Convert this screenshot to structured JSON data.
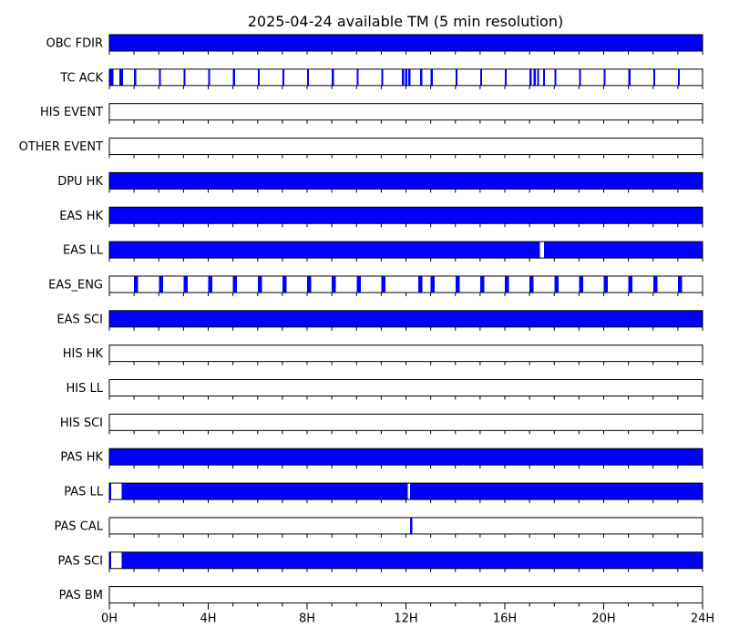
{
  "chart_data": {
    "type": "timeline",
    "title": "2025-04-24 available TM (5 min resolution)",
    "x_unit": "hours",
    "xlim": [
      0,
      24
    ],
    "x_ticks": [
      0,
      4,
      8,
      12,
      16,
      20,
      24
    ],
    "x_tick_labels": [
      "0H",
      "4H",
      "8H",
      "12H",
      "16H",
      "20H",
      "24H"
    ],
    "minor_tick_step_hours": 1,
    "fill_color": "#0000ff",
    "rows": [
      {
        "label": "OBC FDIR",
        "intervals": [
          [
            0,
            24
          ]
        ]
      },
      {
        "label": "TC ACK",
        "intervals": [
          [
            0.0,
            0.17
          ],
          [
            0.4,
            0.55
          ],
          [
            1.0,
            1.08
          ],
          [
            2.0,
            2.08
          ],
          [
            3.0,
            3.08
          ],
          [
            4.0,
            4.08
          ],
          [
            5.0,
            5.08
          ],
          [
            6.0,
            6.08
          ],
          [
            7.0,
            7.08
          ],
          [
            8.0,
            8.08
          ],
          [
            9.0,
            9.08
          ],
          [
            10.0,
            10.08
          ],
          [
            11.0,
            11.08
          ],
          [
            11.83,
            11.92
          ],
          [
            11.97,
            12.05
          ],
          [
            12.1,
            12.18
          ],
          [
            12.58,
            12.67
          ],
          [
            13.0,
            13.08
          ],
          [
            14.0,
            14.08
          ],
          [
            15.0,
            15.08
          ],
          [
            16.0,
            16.08
          ],
          [
            17.0,
            17.08
          ],
          [
            17.17,
            17.25
          ],
          [
            17.3,
            17.38
          ],
          [
            17.55,
            17.63
          ],
          [
            18.0,
            18.08
          ],
          [
            19.0,
            19.08
          ],
          [
            20.0,
            20.08
          ],
          [
            21.0,
            21.08
          ],
          [
            22.0,
            22.08
          ],
          [
            23.0,
            23.08
          ]
        ]
      },
      {
        "label": "HIS EVENT",
        "intervals": []
      },
      {
        "label": "OTHER EVENT",
        "intervals": []
      },
      {
        "label": "DPU HK",
        "intervals": [
          [
            0,
            24
          ]
        ]
      },
      {
        "label": "EAS HK",
        "intervals": [
          [
            0,
            24
          ]
        ]
      },
      {
        "label": "EAS LL",
        "intervals": [
          [
            0,
            17.42
          ],
          [
            17.58,
            24
          ]
        ]
      },
      {
        "label": "EAS_ENG",
        "intervals": [
          [
            1.0,
            1.17
          ],
          [
            2.0,
            2.17
          ],
          [
            3.0,
            3.17
          ],
          [
            4.0,
            4.17
          ],
          [
            5.0,
            5.17
          ],
          [
            6.0,
            6.17
          ],
          [
            7.0,
            7.17
          ],
          [
            8.0,
            8.17
          ],
          [
            9.0,
            9.17
          ],
          [
            10.0,
            10.17
          ],
          [
            11.0,
            11.17
          ],
          [
            12.5,
            12.67
          ],
          [
            13.0,
            13.17
          ],
          [
            14.0,
            14.17
          ],
          [
            15.0,
            15.17
          ],
          [
            16.0,
            16.17
          ],
          [
            17.0,
            17.17
          ],
          [
            18.0,
            18.17
          ],
          [
            19.0,
            19.17
          ],
          [
            20.0,
            20.17
          ],
          [
            21.0,
            21.17
          ],
          [
            22.0,
            22.17
          ],
          [
            23.0,
            23.17
          ]
        ]
      },
      {
        "label": "EAS SCI",
        "intervals": [
          [
            0,
            24
          ]
        ]
      },
      {
        "label": "HIS HK",
        "intervals": []
      },
      {
        "label": "HIS LL",
        "intervals": []
      },
      {
        "label": "HIS SCI",
        "intervals": []
      },
      {
        "label": "PAS HK",
        "intervals": [
          [
            0,
            24
          ]
        ]
      },
      {
        "label": "PAS LL",
        "intervals": [
          [
            0.0,
            0.08
          ],
          [
            0.5,
            12.08
          ],
          [
            12.17,
            24
          ]
        ]
      },
      {
        "label": "PAS CAL",
        "intervals": [
          [
            12.17,
            12.25
          ]
        ]
      },
      {
        "label": "PAS SCI",
        "intervals": [
          [
            0.0,
            0.08
          ],
          [
            0.5,
            24
          ]
        ]
      },
      {
        "label": "PAS BM",
        "intervals": []
      }
    ]
  }
}
